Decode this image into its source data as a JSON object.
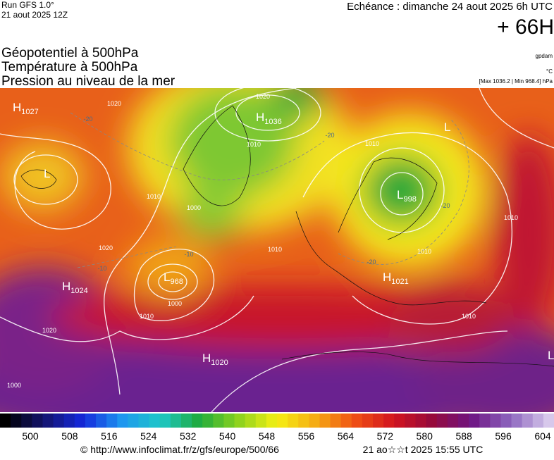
{
  "header": {
    "run": "Run GFS 1.0°",
    "run_date": "21 aout 2025 12Z",
    "valid": "Echéance : dimanche 24 aout 2025 6h UTC",
    "lead": "+ 66H"
  },
  "fields": [
    "Géopotentiel à 500hPa",
    "Température à 500hPa",
    "Pression au niveau de la mer"
  ],
  "units": {
    "geopotential": "gpdam",
    "temperature": "°C",
    "pressure": "[Max 1036.2 | Min 968.4] hPa"
  },
  "pressure_centers": [
    {
      "kind": "H",
      "value": 1027
    },
    {
      "kind": "L"
    },
    {
      "kind": "H",
      "value": 1036
    },
    {
      "kind": "L",
      "value": 998
    },
    {
      "kind": "H",
      "value": 1024
    },
    {
      "kind": "L",
      "value": 968
    },
    {
      "kind": "H",
      "value": 1021
    },
    {
      "kind": "H",
      "value": 1020
    },
    {
      "kind": "L"
    },
    {
      "kind": "L"
    }
  ],
  "isobar_labels": [
    1020,
    1010,
    1000,
    1010,
    1020,
    1010,
    1000,
    1020,
    1010,
    1010,
    1010,
    1010,
    1000,
    1020,
    1010
  ],
  "temperature_labels": [
    -20,
    -20,
    -10,
    -20,
    -20,
    -10
  ],
  "colorbar": {
    "ticks": [
      500,
      508,
      516,
      524,
      532,
      540,
      548,
      556,
      564,
      572,
      580,
      588,
      596,
      604
    ]
  },
  "footer": {
    "source": "© http://www.infoclimat.fr/z/gfs/europe/500/66",
    "generated": "21 ao☆☆t 2025 15:55 UTC"
  }
}
